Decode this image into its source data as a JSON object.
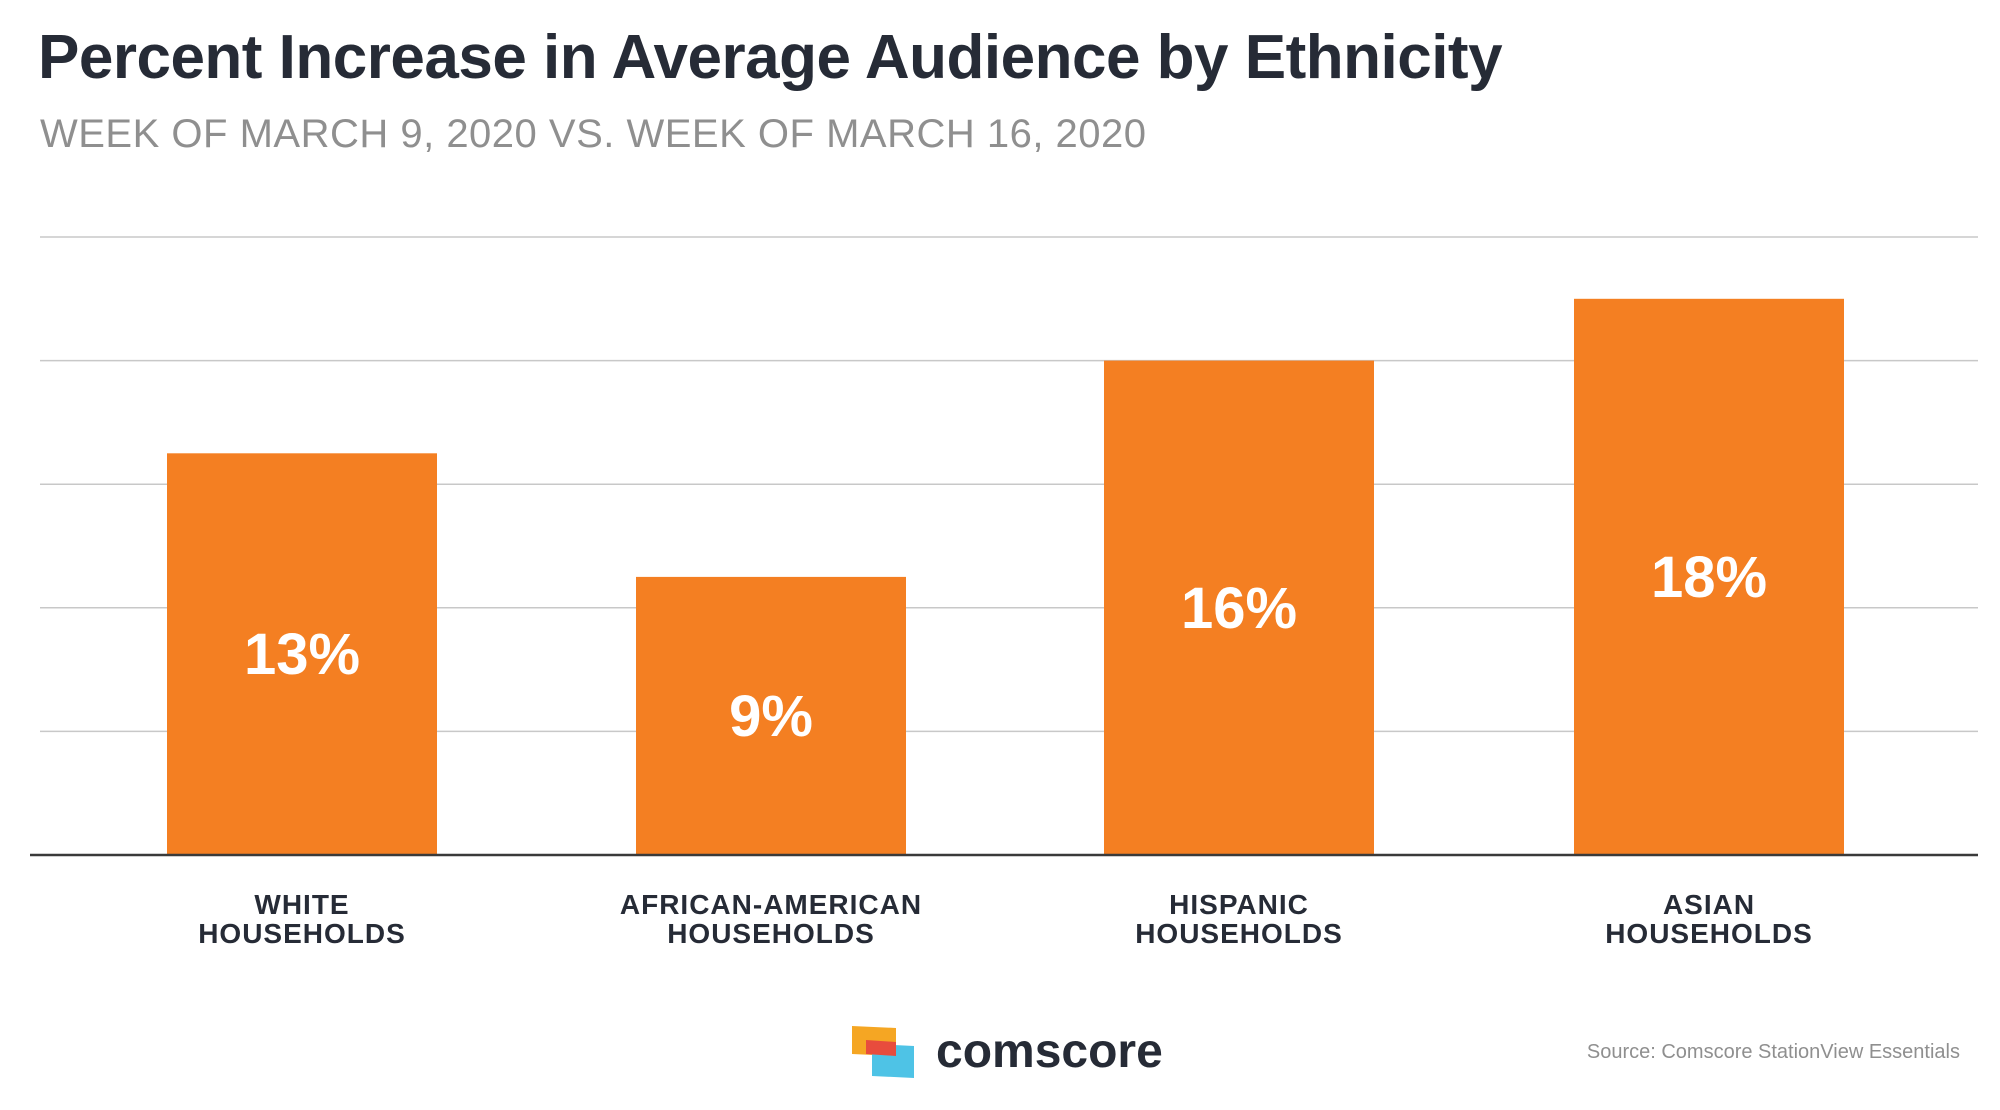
{
  "header": {
    "title": "Percent Increase in Average Audience by Ethnicity",
    "subtitle": "WEEK OF MARCH 9, 2020 VS. WEEK OF MARCH 16, 2020"
  },
  "chart_data": {
    "type": "bar",
    "title": "Percent Increase in Average Audience by Ethnicity",
    "subtitle": "WEEK OF MARCH 9, 2020 VS. WEEK OF MARCH 16, 2020",
    "categories": [
      [
        "WHITE",
        "HOUSEHOLDS"
      ],
      [
        "AFRICAN-AMERICAN",
        "HOUSEHOLDS"
      ],
      [
        "HISPANIC",
        "HOUSEHOLDS"
      ],
      [
        "ASIAN",
        "HOUSEHOLDS"
      ]
    ],
    "values": [
      13,
      9,
      16,
      18
    ],
    "data_labels": [
      "13%",
      "9%",
      "16%",
      "18%"
    ],
    "xlabel": "",
    "ylabel": "",
    "ylim": [
      0,
      20
    ],
    "grid": true,
    "legend": "none",
    "colors": {
      "bar": "#f47f22",
      "grid": "#c8c8c8",
      "axis": "#3a3a3a"
    }
  },
  "footer": {
    "logo_text": "comscore",
    "logo_icon": "comscore-logo-icon",
    "source": "Source: Comscore StationView Essentials"
  }
}
